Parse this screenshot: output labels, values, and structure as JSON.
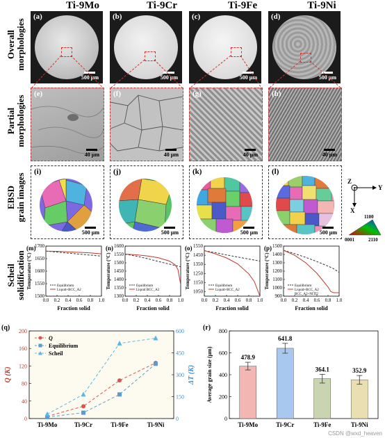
{
  "columns": [
    "Ti-9Mo",
    "Ti-9Cr",
    "Ti-9Fe",
    "Ti-9Ni"
  ],
  "row_labels": {
    "overall": [
      "Overall",
      "morphologies"
    ],
    "partial": [
      "Partial",
      "morphologies"
    ],
    "ebsd": [
      "EBSD",
      "grain images"
    ],
    "scheil": [
      "Scheil",
      "solidification"
    ]
  },
  "panel_tags": {
    "a": "(a)",
    "b": "(b)",
    "c": "(c)",
    "d": "(d)",
    "e": "(e)",
    "f": "(f)",
    "g": "(g)",
    "h": "(h)",
    "i": "(i)",
    "j": "(j)",
    "k": "(k)",
    "l": "(l)",
    "m": "(m)",
    "n": "(n)",
    "o": "(o)",
    "p": "(p)",
    "q": "(q)",
    "r": "(r)"
  },
  "scale_bars": {
    "overall": "500 μm",
    "partial": "40 μm",
    "ebsd": "500 μm"
  },
  "ebsd_legend": {
    "z": "Z",
    "y": "Y",
    "x": "X",
    "pole_top": "1100",
    "pole_left": "0001",
    "pole_right": "2110"
  },
  "scheil_common": {
    "ylabel": "Temperature (°C)",
    "xlabel": "Fraction solid",
    "legend_eq": "Equilibrium",
    "legend_liq": "Liquid+BCC_A2",
    "legend_liq_p": "Liquid+BCC_A2",
    "legend_liq_p2": "BCC_A2+NITI2"
  },
  "chart_data": [
    {
      "id": "m",
      "type": "line",
      "x": [
        0.0,
        0.2,
        0.4,
        0.6,
        0.8,
        1.0
      ],
      "xlim": [
        0.0,
        1.0
      ],
      "ylim": [
        1500,
        1700
      ],
      "yticks": [
        1500,
        1550,
        1600,
        1650,
        1700
      ],
      "xticks": [
        0.0,
        0.2,
        0.4,
        0.6,
        0.8,
        1.0
      ],
      "series": [
        {
          "name": "Equilibrium",
          "dash": true,
          "y": [
            1680,
            1676,
            1672,
            1668,
            1664,
            1660
          ]
        },
        {
          "name": "Liquid+BCC_A2",
          "dash": false,
          "y": [
            1680,
            1679,
            1677,
            1675,
            1673,
            1669
          ]
        }
      ]
    },
    {
      "id": "n",
      "type": "line",
      "x": [
        0.0,
        0.2,
        0.4,
        0.6,
        0.8,
        0.9,
        0.95,
        1.0
      ],
      "xlim": [
        0.0,
        1.0
      ],
      "ylim": [
        1300,
        1600
      ],
      "yticks": [
        1300,
        1350,
        1400,
        1450,
        1500,
        1550,
        1600
      ],
      "xticks": [
        0.0,
        0.2,
        0.4,
        0.6,
        0.8,
        1.0
      ],
      "series": [
        {
          "name": "Equilibrium",
          "dash": true,
          "y": [
            1552,
            1540,
            1525,
            1508,
            1492,
            1484,
            1480,
            1476
          ]
        },
        {
          "name": "Liquid BCC_A2",
          "dash": false,
          "y": [
            1552,
            1548,
            1541,
            1530,
            1510,
            1488,
            1460,
            1370
          ]
        }
      ]
    },
    {
      "id": "o",
      "type": "line",
      "x": [
        0.0,
        0.2,
        0.4,
        0.6,
        0.8,
        0.9,
        1.0
      ],
      "xlim": [
        0.0,
        1.0
      ],
      "ylim": [
        1000,
        1550
      ],
      "yticks": [
        1050,
        1150,
        1250,
        1350,
        1450,
        1550
      ],
      "xticks": [
        0.0,
        0.2,
        0.4,
        0.6,
        0.8,
        1.0
      ],
      "series": [
        {
          "name": "Equilibrium",
          "dash": true,
          "y": [
            1500,
            1478,
            1453,
            1430,
            1408,
            1397,
            1385
          ]
        },
        {
          "name": "Liquid+BCC_A2",
          "dash": false,
          "y": [
            1500,
            1465,
            1420,
            1355,
            1245,
            1160,
            1000
          ]
        }
      ]
    },
    {
      "id": "p",
      "type": "line",
      "x": [
        0.0,
        0.2,
        0.4,
        0.6,
        0.8,
        0.85,
        0.9,
        1.0
      ],
      "xlim": [
        0.0,
        1.0
      ],
      "ylim": [
        900,
        1500
      ],
      "yticks": [
        900,
        1000,
        1100,
        1200,
        1300,
        1400,
        1500
      ],
      "xticks": [
        0.0,
        0.2,
        0.4,
        0.6,
        0.8,
        1.0
      ],
      "series": [
        {
          "name": "Equilibrium",
          "dash": true,
          "y": [
            1450,
            1410,
            1365,
            1315,
            1260,
            1245,
            1230,
            1185
          ]
        },
        {
          "name": "Liquid+BCC_A2",
          "dash": false,
          "y": [
            1450,
            1390,
            1300,
            1175,
            1010,
            955,
            942,
            942
          ]
        }
      ]
    },
    {
      "id": "q",
      "type": "line",
      "categories": [
        "Ti-9Mo",
        "Ti-9Cr",
        "Ti-9Fe",
        "Ti-9Ni"
      ],
      "ylabel_left": "Q (K)",
      "ylabel_right": "ΔT (K)",
      "ylim_left": [
        0,
        200
      ],
      "ylim_right": [
        0,
        600
      ],
      "yticks_left": [
        0,
        40,
        80,
        120,
        160,
        200
      ],
      "yticks_right": [
        0,
        150,
        300,
        450,
        600
      ],
      "series": [
        {
          "name": "Q",
          "axis": "left",
          "color": "#d9534f",
          "marker": "circle",
          "values": [
            5,
            28,
            87,
            127
          ]
        },
        {
          "name": "Equilibrium",
          "axis": "right",
          "color": "#5b9bd5",
          "marker": "square",
          "values": [
            10,
            40,
            165,
            375
          ]
        },
        {
          "name": "Scheil",
          "axis": "right",
          "color": "#5bb5e5",
          "marker": "triangle",
          "values": [
            30,
            165,
            515,
            550
          ]
        }
      ]
    },
    {
      "id": "r",
      "type": "bar",
      "categories": [
        "Ti-9Mo",
        "Ti-9Cr",
        "Ti-9Fe",
        "Ti-9Ni"
      ],
      "values": [
        478.9,
        641.8,
        364.1,
        352.9
      ],
      "errors": [
        35,
        45,
        40,
        40
      ],
      "ylabel": "Average grain size (μm)",
      "ylim": [
        0,
        800
      ],
      "yticks": [
        0,
        200,
        400,
        600,
        800
      ],
      "colors": [
        "#f4b6b2",
        "#a9c8f0",
        "#c9d4b0",
        "#e9dfb0"
      ]
    }
  ],
  "watermark": "CSDN @wxd_heaven"
}
